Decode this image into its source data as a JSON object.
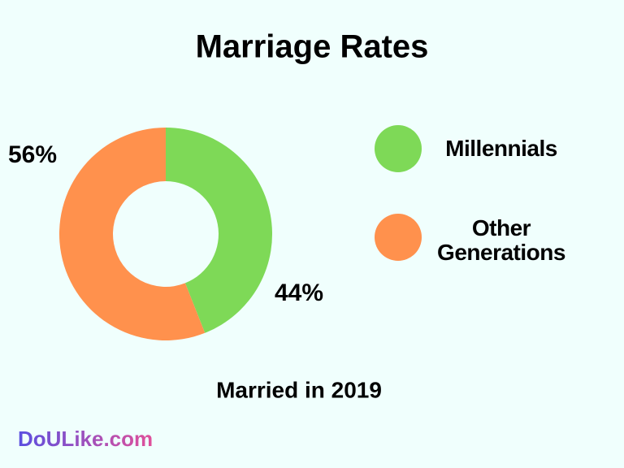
{
  "chart_data": {
    "type": "donut",
    "title": "Marriage Rates",
    "categories": [
      "Millennials",
      "Other Generations"
    ],
    "values": [
      44,
      56
    ],
    "value_labels": [
      "44%",
      "56%"
    ],
    "colors": [
      "#7ed957",
      "#ff914d"
    ],
    "annotation": "Married in 2019",
    "source": "DoULike.com",
    "legend": "right"
  }
}
